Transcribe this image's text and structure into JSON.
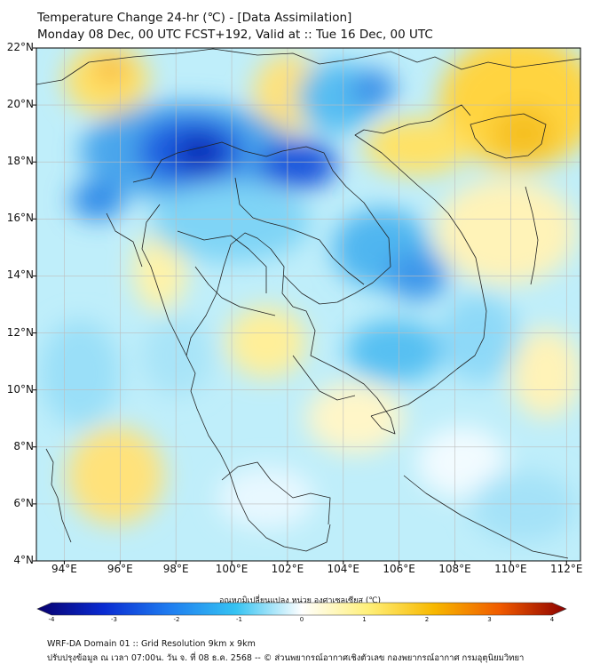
{
  "header": {
    "title_line1": "Temperature Change 24-hr (℃) - [Data Assimilation]",
    "title_line2": "Monday 08 Dec, 00 UTC FCST+192, Valid at :: Tue 16 Dec, 00 UTC"
  },
  "map": {
    "lat_labels": [
      "22°N",
      "20°N",
      "18°N",
      "16°N",
      "14°N",
      "12°N",
      "10°N",
      "8°N",
      "6°N",
      "4°N"
    ],
    "lon_labels": [
      "94°E",
      "96°E",
      "98°E",
      "100°E",
      "102°E",
      "104°E",
      "106°E",
      "108°E",
      "110°E",
      "112°E"
    ],
    "lat_range": [
      4,
      22
    ],
    "lon_range": [
      93,
      112.5
    ],
    "gridlines": true
  },
  "colorbar": {
    "label": "อุณหภูมิเปลี่ยนแปลง หน่วย องศาเซลเซียส (℃)",
    "ticks": [
      "-4",
      "-3",
      "-2",
      "-1",
      "0",
      "1",
      "2",
      "3",
      "4"
    ],
    "range": [
      -4,
      4
    ],
    "colors": [
      "#08006e",
      "#0a2bd1",
      "#1f7df0",
      "#35c3f2",
      "#ffffff",
      "#fff07a",
      "#f7b800",
      "#f05a00",
      "#8c0000"
    ]
  },
  "footer": {
    "line1": "WRF-DA Domain 01 :: Grid Resolution 9km x 9km",
    "line2": "ปรับปรุงข้อมูล ณ เวลา 07:00น. วัน จ. ที่ 08 ธ.ค. 2568 -- © ส่วนพยากรณ์อากาศเชิงตัวเลข กองพยากรณ์อากาศ กรมอุตุนิยมวิทยา"
  }
}
